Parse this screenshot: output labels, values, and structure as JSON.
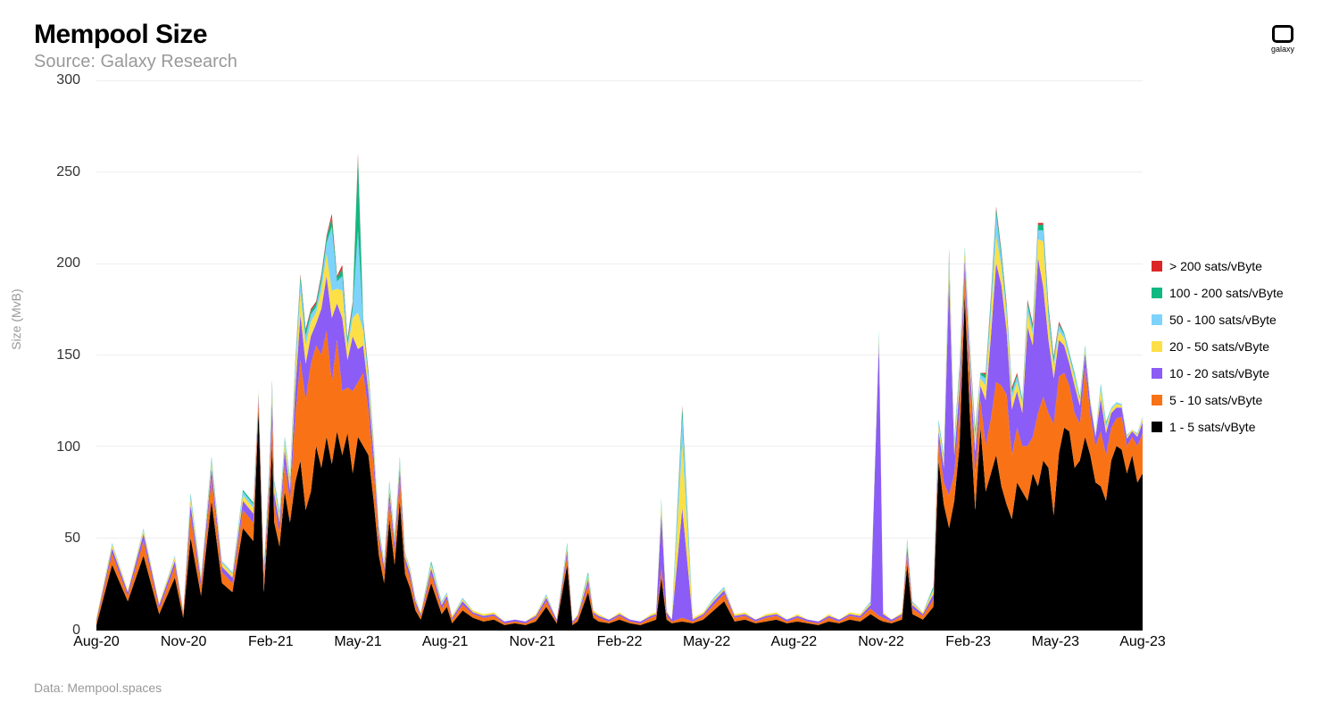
{
  "header": {
    "title": "Mempool Size",
    "subtitle": "Source: Galaxy Research"
  },
  "logo": {
    "label": "galaxy"
  },
  "footer": {
    "data_source": "Data: Mempool.spaces"
  },
  "chart": {
    "type": "stacked-area",
    "ylabel": "Size (MvB)",
    "ylim": [
      0,
      300
    ],
    "ytick_step": 50,
    "yticks": [
      0,
      50,
      100,
      150,
      200,
      250,
      300
    ],
    "x_categories": [
      "Aug-20",
      "Nov-20",
      "Feb-21",
      "May-21",
      "Aug-21",
      "Nov-21",
      "Feb-22",
      "May-22",
      "Aug-22",
      "Nov-22",
      "Feb-23",
      "May-23",
      "Aug-23"
    ],
    "background_color": "#ffffff",
    "grid_color": "#eeeeee",
    "axis_color": "#000000",
    "title_fontsize": 30,
    "subtitle_fontsize": 20,
    "tick_fontsize": 16,
    "legend_fontsize": 14,
    "series": [
      {
        "name": "1 - 5 sats/vByte",
        "color": "#000000"
      },
      {
        "name": "5 - 10 sats/vByte",
        "color": "#f97316"
      },
      {
        "name": "10 - 20 sats/vByte",
        "color": "#8b5cf6"
      },
      {
        "name": "20 - 50 sats/vByte",
        "color": "#fde047"
      },
      {
        "name": "50 - 100 sats/vByte",
        "color": "#7dd3fc"
      },
      {
        "name": "100 - 200 sats/vByte",
        "color": "#10b981"
      },
      {
        "name": "> 200 sats/vByte",
        "color": "#dc2626"
      }
    ],
    "legend_order": [
      6,
      5,
      4,
      3,
      2,
      1,
      0
    ],
    "x_values": [
      0,
      0.015,
      0.03,
      0.045,
      0.06,
      0.075,
      0.083,
      0.09,
      0.1,
      0.11,
      0.12,
      0.13,
      0.14,
      0.15,
      0.155,
      0.16,
      0.165,
      0.168,
      0.17,
      0.175,
      0.18,
      0.185,
      0.19,
      0.195,
      0.2,
      0.205,
      0.21,
      0.215,
      0.22,
      0.225,
      0.23,
      0.235,
      0.24,
      0.245,
      0.25,
      0.255,
      0.26,
      0.265,
      0.27,
      0.275,
      0.28,
      0.285,
      0.29,
      0.295,
      0.3,
      0.305,
      0.31,
      0.32,
      0.33,
      0.335,
      0.34,
      0.35,
      0.36,
      0.37,
      0.38,
      0.39,
      0.4,
      0.41,
      0.42,
      0.43,
      0.44,
      0.45,
      0.455,
      0.46,
      0.47,
      0.475,
      0.48,
      0.49,
      0.5,
      0.51,
      0.52,
      0.53,
      0.535,
      0.54,
      0.545,
      0.55,
      0.56,
      0.57,
      0.58,
      0.59,
      0.6,
      0.61,
      0.62,
      0.63,
      0.64,
      0.65,
      0.66,
      0.67,
      0.68,
      0.69,
      0.7,
      0.71,
      0.72,
      0.73,
      0.74,
      0.748,
      0.752,
      0.76,
      0.77,
      0.775,
      0.78,
      0.79,
      0.8,
      0.805,
      0.81,
      0.815,
      0.82,
      0.825,
      0.83,
      0.835,
      0.84,
      0.845,
      0.85,
      0.855,
      0.86,
      0.865,
      0.87,
      0.875,
      0.88,
      0.885,
      0.89,
      0.895,
      0.9,
      0.905,
      0.91,
      0.915,
      0.92,
      0.925,
      0.93,
      0.935,
      0.94,
      0.945,
      0.95,
      0.955,
      0.96,
      0.965,
      0.97,
      0.975,
      0.98,
      0.985,
      0.99,
      0.995,
      1.0
    ],
    "stacks": [
      [
        2,
        35,
        15,
        40,
        8,
        28,
        6,
        50,
        18,
        70,
        25,
        20,
        55,
        48,
        120,
        20,
        65,
        100,
        58,
        45,
        75,
        58,
        80,
        92,
        65,
        75,
        100,
        88,
        105,
        90,
        108,
        95,
        107,
        85,
        105,
        100,
        95,
        70,
        40,
        25,
        60,
        35,
        70,
        30,
        22,
        10,
        5,
        25,
        8,
        12,
        3,
        10,
        6,
        4,
        5,
        2,
        3,
        2,
        4,
        12,
        3,
        35,
        2,
        4,
        20,
        6,
        4,
        3,
        5,
        3,
        2,
        4,
        5,
        28,
        5,
        3,
        4,
        3,
        5,
        10,
        15,
        4,
        5,
        3,
        4,
        5,
        3,
        4,
        3,
        2,
        4,
        3,
        5,
        4,
        8,
        5,
        4,
        3,
        5,
        35,
        8,
        5,
        12,
        92,
        68,
        55,
        70,
        100,
        182,
        115,
        65,
        110,
        75,
        85,
        95,
        78,
        68,
        60,
        80,
        75,
        70,
        85,
        78,
        92,
        88,
        62,
        96,
        110,
        108,
        88,
        92,
        105,
        95,
        80,
        78,
        70,
        92,
        100,
        98,
        85,
        95,
        80,
        85
      ],
      [
        2,
        6,
        3,
        8,
        3,
        6,
        2,
        12,
        5,
        12,
        6,
        5,
        10,
        10,
        5,
        6,
        10,
        15,
        10,
        8,
        15,
        12,
        35,
        55,
        60,
        70,
        55,
        62,
        58,
        45,
        50,
        35,
        25,
        45,
        30,
        40,
        25,
        18,
        8,
        6,
        10,
        8,
        12,
        6,
        5,
        3,
        2,
        5,
        3,
        4,
        2,
        3,
        2,
        2,
        2,
        1,
        1,
        1,
        2,
        3,
        1,
        5,
        1,
        2,
        4,
        2,
        2,
        1,
        2,
        1,
        1,
        2,
        2,
        5,
        2,
        1,
        2,
        1,
        2,
        3,
        4,
        2,
        2,
        1,
        2,
        2,
        1,
        2,
        1,
        1,
        2,
        1,
        2,
        2,
        3,
        2,
        2,
        1,
        2,
        6,
        3,
        2,
        4,
        10,
        12,
        18,
        15,
        20,
        12,
        18,
        20,
        15,
        25,
        30,
        40,
        55,
        60,
        35,
        30,
        25,
        30,
        20,
        40,
        35,
        30,
        50,
        42,
        30,
        25,
        30,
        20,
        38,
        22,
        20,
        30,
        25,
        18,
        15,
        18,
        15,
        10,
        20,
        22
      ],
      [
        1,
        3,
        2,
        4,
        2,
        3,
        1,
        6,
        3,
        6,
        3,
        3,
        5,
        5,
        3,
        4,
        5,
        10,
        6,
        5,
        8,
        6,
        15,
        25,
        20,
        15,
        12,
        25,
        30,
        35,
        20,
        40,
        15,
        30,
        18,
        15,
        10,
        8,
        4,
        3,
        5,
        4,
        6,
        3,
        3,
        2,
        1,
        3,
        2,
        2,
        1,
        2,
        1,
        1,
        1,
        1,
        1,
        1,
        1,
        2,
        1,
        3,
        1,
        1,
        3,
        1,
        1,
        1,
        1,
        1,
        1,
        1,
        1,
        30,
        2,
        1,
        60,
        1,
        1,
        2,
        2,
        1,
        1,
        1,
        1,
        1,
        1,
        1,
        1,
        1,
        1,
        1,
        1,
        1,
        2,
        150,
        2,
        1,
        1,
        4,
        2,
        1,
        3,
        6,
        8,
        120,
        10,
        12,
        8,
        10,
        12,
        8,
        25,
        45,
        65,
        55,
        35,
        25,
        20,
        18,
        65,
        50,
        85,
        60,
        40,
        25,
        20,
        15,
        12,
        15,
        10,
        8,
        6,
        5,
        18,
        12,
        8,
        6,
        5,
        4,
        3,
        5,
        6
      ],
      [
        1,
        2,
        1,
        2,
        1,
        2,
        1,
        3,
        2,
        3,
        2,
        2,
        3,
        3,
        2,
        2,
        3,
        5,
        4,
        3,
        4,
        4,
        8,
        12,
        10,
        8,
        6,
        10,
        12,
        15,
        8,
        15,
        6,
        10,
        20,
        8,
        5,
        4,
        2,
        2,
        3,
        2,
        3,
        2,
        2,
        1,
        1,
        2,
        1,
        1,
        1,
        1,
        1,
        1,
        1,
        0,
        0,
        0,
        1,
        1,
        0,
        2,
        0,
        1,
        2,
        1,
        1,
        0,
        1,
        0,
        0,
        1,
        1,
        5,
        1,
        0,
        35,
        1,
        1,
        1,
        1,
        1,
        1,
        0,
        1,
        1,
        0,
        1,
        0,
        0,
        1,
        0,
        1,
        1,
        1,
        3,
        1,
        0,
        1,
        2,
        1,
        1,
        2,
        3,
        4,
        8,
        5,
        6,
        4,
        5,
        6,
        4,
        8,
        12,
        15,
        10,
        8,
        6,
        5,
        5,
        8,
        6,
        10,
        25,
        10,
        6,
        5,
        4,
        3,
        4,
        3,
        2,
        2,
        1,
        5,
        3,
        2,
        2,
        1,
        1,
        1,
        1,
        2
      ],
      [
        0,
        1,
        0,
        1,
        0,
        1,
        0,
        2,
        1,
        2,
        1,
        1,
        2,
        2,
        1,
        1,
        2,
        3,
        2,
        2,
        2,
        2,
        4,
        6,
        5,
        4,
        3,
        5,
        6,
        35,
        4,
        8,
        3,
        5,
        45,
        4,
        3,
        2,
        1,
        1,
        2,
        1,
        2,
        1,
        1,
        1,
        0,
        1,
        1,
        1,
        0,
        1,
        0,
        0,
        0,
        0,
        0,
        0,
        0,
        1,
        0,
        1,
        0,
        0,
        1,
        0,
        0,
        0,
        0,
        0,
        0,
        0,
        0,
        2,
        0,
        0,
        15,
        0,
        0,
        1,
        1,
        0,
        0,
        0,
        0,
        0,
        0,
        0,
        0,
        0,
        0,
        0,
        0,
        0,
        1,
        2,
        0,
        0,
        0,
        1,
        1,
        0,
        1,
        2,
        2,
        4,
        3,
        3,
        2,
        3,
        3,
        2,
        4,
        6,
        12,
        5,
        4,
        3,
        3,
        2,
        4,
        3,
        5,
        6,
        5,
        3,
        3,
        2,
        2,
        2,
        1,
        1,
        1,
        1,
        2,
        2,
        1,
        1,
        1,
        1,
        0,
        1,
        1
      ],
      [
        0,
        0,
        0,
        0,
        0,
        0,
        0,
        1,
        0,
        1,
        0,
        0,
        1,
        1,
        0,
        1,
        1,
        2,
        1,
        1,
        1,
        1,
        2,
        3,
        3,
        2,
        2,
        3,
        3,
        5,
        2,
        4,
        2,
        3,
        40,
        2,
        2,
        1,
        1,
        0,
        1,
        1,
        1,
        0,
        0,
        0,
        0,
        1,
        0,
        0,
        0,
        0,
        0,
        0,
        0,
        0,
        0,
        0,
        0,
        0,
        0,
        1,
        0,
        0,
        1,
        0,
        0,
        0,
        0,
        0,
        0,
        0,
        0,
        1,
        0,
        0,
        5,
        0,
        0,
        0,
        0,
        0,
        0,
        0,
        0,
        0,
        0,
        0,
        0,
        0,
        0,
        0,
        0,
        0,
        0,
        1,
        0,
        0,
        0,
        1,
        0,
        0,
        1,
        1,
        1,
        2,
        1,
        2,
        1,
        2,
        2,
        1,
        2,
        3,
        3,
        3,
        2,
        2,
        1,
        1,
        2,
        2,
        3,
        3,
        3,
        2,
        1,
        1,
        1,
        1,
        1,
        1,
        0,
        0,
        1,
        1,
        0,
        0,
        0,
        0,
        0,
        0,
        0
      ],
      [
        0,
        0,
        0,
        0,
        0,
        0,
        0,
        0,
        0,
        0,
        0,
        0,
        0,
        0,
        0,
        0,
        0,
        1,
        0,
        0,
        0,
        0,
        1,
        1,
        1,
        1,
        1,
        1,
        1,
        2,
        1,
        2,
        1,
        1,
        2,
        1,
        1,
        0,
        0,
        0,
        0,
        0,
        0,
        0,
        0,
        0,
        0,
        0,
        0,
        0,
        0,
        0,
        0,
        0,
        0,
        0,
        0,
        0,
        0,
        0,
        0,
        0,
        0,
        0,
        0,
        0,
        0,
        0,
        0,
        0,
        0,
        0,
        0,
        0,
        0,
        0,
        1,
        0,
        0,
        0,
        0,
        0,
        0,
        0,
        0,
        0,
        0,
        0,
        0,
        0,
        0,
        0,
        0,
        0,
        0,
        0,
        0,
        0,
        0,
        0,
        0,
        0,
        0,
        0,
        0,
        1,
        0,
        1,
        0,
        1,
        1,
        0,
        1,
        1,
        1,
        1,
        1,
        1,
        1,
        0,
        1,
        1,
        1,
        1,
        1,
        1,
        1,
        0,
        0,
        0,
        0,
        0,
        0,
        0,
        0,
        0,
        0,
        0,
        0,
        0,
        0,
        0,
        0
      ]
    ]
  }
}
